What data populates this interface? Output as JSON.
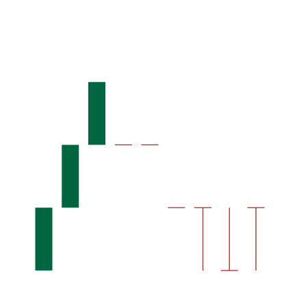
{
  "chart_data": {
    "type": "candlestick",
    "title": "",
    "xlabel": "",
    "ylabel": "",
    "axes_visible": false,
    "grid": false,
    "legend": "none",
    "ylim": [
      0,
      4
    ],
    "up_color": "#006641",
    "down_color": "#b22222",
    "candles": [
      {
        "index": 0,
        "open": 0,
        "close": 1,
        "high": 1,
        "low": 0
      },
      {
        "index": 1,
        "open": 1,
        "close": 2,
        "high": 2,
        "low": 1
      },
      {
        "index": 2,
        "open": 2,
        "close": 3,
        "high": 3,
        "low": 2
      },
      {
        "index": 3,
        "open": 2,
        "close": 2,
        "high": 2,
        "low": 2
      },
      {
        "index": 4,
        "open": 2,
        "close": 2,
        "high": 2,
        "low": 2
      },
      {
        "index": 5,
        "open": 1,
        "close": 1,
        "high": 1,
        "low": 1
      },
      {
        "index": 6,
        "open": 1,
        "close": 1,
        "high": 1,
        "low": 0
      },
      {
        "index": 7,
        "open": 0,
        "close": 0,
        "high": 1,
        "low": 0
      },
      {
        "index": 8,
        "open": 1,
        "close": 1,
        "high": 1,
        "low": 0
      }
    ]
  }
}
